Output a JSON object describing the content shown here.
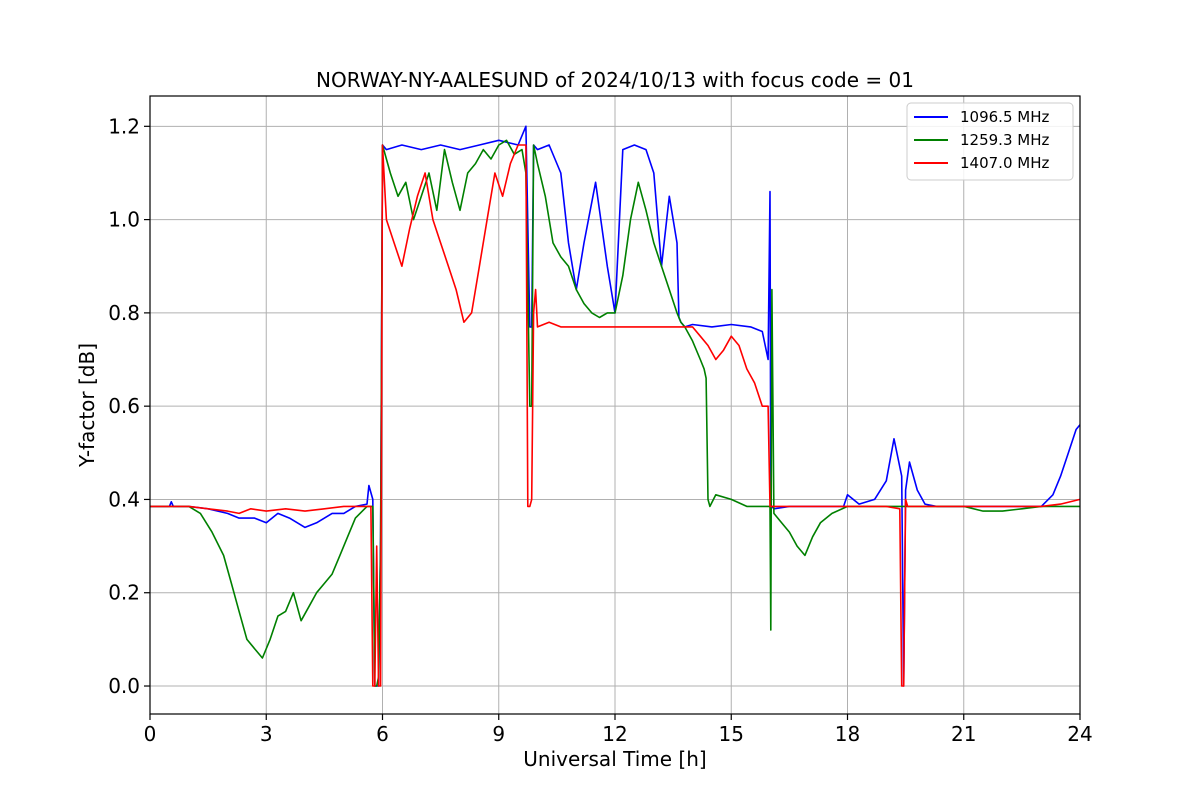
{
  "chart_data": {
    "type": "line",
    "title": "NORWAY-NY-AALESUND of 2024/10/13 with focus code = 01",
    "xlabel": "Universal Time [h]",
    "ylabel": "Y-factor [dB]",
    "xlim": [
      0,
      24
    ],
    "ylim": [
      -0.06,
      1.265
    ],
    "xticks": [
      0,
      3,
      6,
      9,
      12,
      15,
      18,
      21,
      24
    ],
    "yticks": [
      0.0,
      0.2,
      0.4,
      0.6,
      0.8,
      1.0,
      1.2
    ],
    "grid": true,
    "legend_position": "upper-right",
    "series": [
      {
        "name": "1096.5 MHz",
        "color": "#0000ff",
        "x": [
          0.0,
          0.5,
          0.55,
          0.6,
          1.0,
          1.5,
          2.0,
          2.3,
          2.7,
          3.0,
          3.3,
          3.6,
          4.0,
          4.3,
          4.7,
          5.0,
          5.3,
          5.6,
          5.65,
          5.75,
          5.8,
          5.85,
          5.9,
          5.95,
          6.0,
          6.1,
          6.5,
          7.0,
          7.5,
          8.0,
          8.5,
          9.0,
          9.5,
          9.7,
          9.8,
          9.85,
          9.9,
          10.0,
          10.3,
          10.6,
          10.8,
          11.0,
          11.2,
          11.5,
          11.8,
          12.0,
          12.2,
          12.5,
          12.8,
          13.0,
          13.2,
          13.4,
          13.6,
          13.65,
          13.7,
          13.8,
          14.0,
          14.5,
          15.0,
          15.5,
          15.8,
          15.95,
          16.0,
          16.02,
          16.05,
          16.1,
          16.5,
          17.0,
          17.5,
          17.9,
          18.0,
          18.3,
          18.7,
          19.0,
          19.2,
          19.4,
          19.45,
          19.5,
          19.6,
          19.8,
          20.0,
          20.3,
          20.5,
          21.0,
          21.5,
          22.0,
          22.5,
          23.0,
          23.3,
          23.5,
          23.7,
          23.9,
          24.0
        ],
        "y": [
          0.385,
          0.385,
          0.395,
          0.385,
          0.385,
          0.38,
          0.37,
          0.36,
          0.36,
          0.35,
          0.37,
          0.36,
          0.34,
          0.35,
          0.37,
          0.37,
          0.385,
          0.39,
          0.43,
          0.4,
          0.0,
          0.0,
          0.0,
          0.32,
          1.16,
          1.15,
          1.16,
          1.15,
          1.16,
          1.15,
          1.16,
          1.17,
          1.16,
          1.2,
          0.77,
          0.77,
          1.16,
          1.15,
          1.16,
          1.1,
          0.95,
          0.85,
          0.95,
          1.08,
          0.9,
          0.8,
          1.15,
          1.16,
          1.15,
          1.1,
          0.9,
          1.05,
          0.95,
          0.79,
          0.78,
          0.77,
          0.775,
          0.77,
          0.775,
          0.77,
          0.76,
          0.7,
          1.06,
          0.38,
          0.385,
          0.38,
          0.385,
          0.385,
          0.385,
          0.385,
          0.41,
          0.39,
          0.4,
          0.44,
          0.53,
          0.45,
          0.0,
          0.42,
          0.48,
          0.42,
          0.39,
          0.385,
          0.385,
          0.385,
          0.385,
          0.385,
          0.385,
          0.385,
          0.41,
          0.45,
          0.5,
          0.55,
          0.56
        ]
      },
      {
        "name": "1259.3 MHz",
        "color": "#008000",
        "x": [
          0.0,
          1.0,
          1.3,
          1.6,
          1.9,
          2.1,
          2.3,
          2.5,
          2.7,
          2.9,
          3.1,
          3.3,
          3.5,
          3.7,
          3.9,
          4.1,
          4.3,
          4.5,
          4.7,
          4.9,
          5.1,
          5.3,
          5.6,
          5.75,
          5.8,
          5.85,
          5.9,
          5.95,
          6.0,
          6.2,
          6.4,
          6.6,
          6.8,
          7.0,
          7.2,
          7.4,
          7.6,
          7.8,
          8.0,
          8.2,
          8.4,
          8.6,
          8.8,
          9.0,
          9.2,
          9.4,
          9.6,
          9.7,
          9.8,
          9.85,
          9.9,
          10.0,
          10.2,
          10.4,
          10.6,
          10.8,
          11.0,
          11.2,
          11.4,
          11.6,
          11.8,
          12.0,
          12.2,
          12.4,
          12.6,
          12.8,
          13.0,
          13.2,
          13.4,
          13.6,
          13.7,
          13.8,
          14.0,
          14.2,
          14.3,
          14.35,
          14.4,
          14.45,
          14.6,
          15.0,
          15.4,
          15.5,
          15.8,
          16.0,
          16.02,
          16.05,
          16.1,
          16.3,
          16.5,
          16.7,
          16.9,
          17.1,
          17.3,
          17.6,
          18.0,
          19.0,
          20.0,
          21.0,
          21.5,
          22.0,
          22.5,
          23.0,
          24.0
        ],
        "y": [
          0.385,
          0.385,
          0.37,
          0.33,
          0.28,
          0.22,
          0.16,
          0.1,
          0.08,
          0.06,
          0.1,
          0.15,
          0.16,
          0.2,
          0.14,
          0.17,
          0.2,
          0.22,
          0.24,
          0.28,
          0.32,
          0.36,
          0.385,
          0.385,
          0.0,
          0.0,
          0.02,
          0.3,
          1.16,
          1.1,
          1.05,
          1.08,
          1.0,
          1.05,
          1.1,
          1.02,
          1.15,
          1.08,
          1.02,
          1.1,
          1.12,
          1.15,
          1.13,
          1.16,
          1.17,
          1.14,
          1.15,
          1.1,
          0.6,
          0.6,
          1.16,
          1.12,
          1.05,
          0.95,
          0.92,
          0.9,
          0.85,
          0.82,
          0.8,
          0.79,
          0.8,
          0.8,
          0.88,
          1.0,
          1.08,
          1.02,
          0.95,
          0.9,
          0.85,
          0.8,
          0.78,
          0.77,
          0.74,
          0.7,
          0.68,
          0.66,
          0.4,
          0.385,
          0.41,
          0.4,
          0.385,
          0.385,
          0.385,
          0.385,
          0.12,
          0.85,
          0.37,
          0.35,
          0.33,
          0.3,
          0.28,
          0.32,
          0.35,
          0.37,
          0.385,
          0.385,
          0.385,
          0.385,
          0.375,
          0.375,
          0.38,
          0.385,
          0.385
        ]
      },
      {
        "name": "1407.0 MHz",
        "color": "#ff0000",
        "x": [
          0.0,
          1.0,
          1.5,
          2.0,
          2.3,
          2.6,
          3.0,
          3.5,
          4.0,
          4.5,
          5.0,
          5.5,
          5.7,
          5.75,
          5.8,
          5.85,
          5.9,
          5.95,
          6.0,
          6.1,
          6.3,
          6.5,
          6.7,
          6.9,
          7.1,
          7.3,
          7.5,
          7.7,
          7.9,
          8.1,
          8.3,
          8.5,
          8.7,
          8.9,
          9.1,
          9.3,
          9.5,
          9.7,
          9.75,
          9.8,
          9.85,
          9.9,
          9.95,
          10.0,
          10.3,
          10.6,
          11.0,
          11.5,
          12.0,
          12.5,
          13.0,
          13.5,
          14.0,
          14.2,
          14.4,
          14.6,
          14.8,
          15.0,
          15.2,
          15.4,
          15.6,
          15.8,
          15.95,
          16.0,
          16.02,
          16.1,
          17.0,
          18.0,
          19.0,
          19.35,
          19.4,
          19.45,
          19.5,
          19.55,
          20.0,
          21.0,
          22.0,
          23.0,
          23.5,
          24.0
        ],
        "y": [
          0.385,
          0.385,
          0.38,
          0.375,
          0.37,
          0.38,
          0.375,
          0.38,
          0.375,
          0.38,
          0.385,
          0.385,
          0.385,
          0.0,
          0.0,
          0.3,
          0.0,
          0.0,
          1.16,
          1.0,
          0.95,
          0.9,
          0.98,
          1.05,
          1.1,
          1.0,
          0.95,
          0.9,
          0.85,
          0.78,
          0.8,
          0.9,
          1.0,
          1.1,
          1.05,
          1.12,
          1.16,
          1.16,
          0.385,
          0.385,
          0.4,
          0.8,
          0.85,
          0.77,
          0.78,
          0.77,
          0.77,
          0.77,
          0.77,
          0.77,
          0.77,
          0.77,
          0.77,
          0.75,
          0.73,
          0.7,
          0.72,
          0.75,
          0.73,
          0.68,
          0.65,
          0.6,
          0.6,
          0.385,
          0.385,
          0.385,
          0.385,
          0.385,
          0.385,
          0.38,
          0.0,
          0.0,
          0.4,
          0.385,
          0.385,
          0.385,
          0.385,
          0.385,
          0.39,
          0.4
        ]
      }
    ]
  }
}
